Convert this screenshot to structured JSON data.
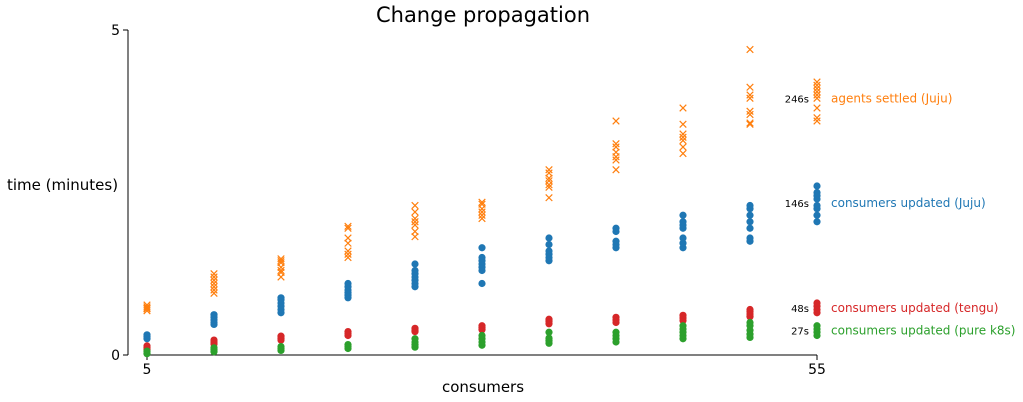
{
  "chart_data": {
    "type": "scatter",
    "title": "Change propagation",
    "xlabel": "consumers",
    "ylabel": "time (minutes)",
    "xlim": [
      5,
      55
    ],
    "ylim": [
      0,
      5
    ],
    "x_ticks": [
      "5",
      "55"
    ],
    "y_ticks": [
      "0",
      "5"
    ],
    "grid": false,
    "series": [
      {
        "name": "agents settled (Juju)",
        "color": "#ff7f0e",
        "marker": "x",
        "end_label": "246s",
        "points": [
          [
            5,
            0.68
          ],
          [
            5,
            0.71
          ],
          [
            5,
            0.74
          ],
          [
            5,
            0.77
          ],
          [
            5,
            0.72
          ],
          [
            10,
            1.0
          ],
          [
            10,
            1.05
          ],
          [
            10,
            1.1
          ],
          [
            10,
            1.15
          ],
          [
            10,
            1.2
          ],
          [
            10,
            1.25
          ],
          [
            10,
            0.95
          ],
          [
            15,
            1.2
          ],
          [
            15,
            1.27
          ],
          [
            15,
            1.35
          ],
          [
            15,
            1.42
          ],
          [
            15,
            1.48
          ],
          [
            15,
            1.3
          ],
          [
            15,
            1.45
          ],
          [
            20,
            1.5
          ],
          [
            20,
            1.55
          ],
          [
            20,
            1.72
          ],
          [
            20,
            1.8
          ],
          [
            20,
            1.95
          ],
          [
            20,
            1.98
          ],
          [
            20,
            1.6
          ],
          [
            25,
            1.82
          ],
          [
            25,
            1.9
          ],
          [
            25,
            2.0
          ],
          [
            25,
            2.1
          ],
          [
            25,
            2.2
          ],
          [
            25,
            2.3
          ],
          [
            25,
            2.05
          ],
          [
            30,
            2.1
          ],
          [
            30,
            2.15
          ],
          [
            30,
            2.2
          ],
          [
            30,
            2.25
          ],
          [
            30,
            2.32
          ],
          [
            30,
            2.35
          ],
          [
            35,
            2.42
          ],
          [
            35,
            2.58
          ],
          [
            35,
            2.62
          ],
          [
            35,
            2.68
          ],
          [
            35,
            2.72
          ],
          [
            35,
            2.8
          ],
          [
            35,
            2.85
          ],
          [
            40,
            2.85
          ],
          [
            40,
            3.0
          ],
          [
            40,
            3.05
          ],
          [
            40,
            3.12
          ],
          [
            40,
            3.2
          ],
          [
            40,
            3.25
          ],
          [
            40,
            3.6
          ],
          [
            45,
            3.1
          ],
          [
            45,
            3.2
          ],
          [
            45,
            3.3
          ],
          [
            45,
            3.35
          ],
          [
            45,
            3.4
          ],
          [
            45,
            3.55
          ],
          [
            45,
            3.8
          ],
          [
            50,
            3.55
          ],
          [
            50,
            3.57
          ],
          [
            50,
            3.7
          ],
          [
            50,
            3.75
          ],
          [
            50,
            3.95
          ],
          [
            50,
            4.0
          ],
          [
            50,
            4.12
          ],
          [
            50,
            4.7
          ],
          [
            55,
            3.6
          ],
          [
            55,
            3.65
          ],
          [
            55,
            3.8
          ],
          [
            55,
            3.95
          ],
          [
            55,
            4.0
          ],
          [
            55,
            4.05
          ],
          [
            55,
            4.1
          ],
          [
            55,
            4.15
          ],
          [
            55,
            4.2
          ]
        ]
      },
      {
        "name": "consumers updated (Juju)",
        "color": "#1f77b4",
        "marker": "o",
        "end_label": "146s",
        "points": [
          [
            5,
            0.25
          ],
          [
            5,
            0.28
          ],
          [
            5,
            0.31
          ],
          [
            10,
            0.47
          ],
          [
            10,
            0.5
          ],
          [
            10,
            0.54
          ],
          [
            10,
            0.58
          ],
          [
            10,
            0.62
          ],
          [
            15,
            0.65
          ],
          [
            15,
            0.7
          ],
          [
            15,
            0.75
          ],
          [
            15,
            0.8
          ],
          [
            15,
            0.85
          ],
          [
            15,
            0.88
          ],
          [
            20,
            0.88
          ],
          [
            20,
            0.92
          ],
          [
            20,
            0.96
          ],
          [
            20,
            1.0
          ],
          [
            20,
            1.05
          ],
          [
            20,
            1.1
          ],
          [
            25,
            1.05
          ],
          [
            25,
            1.1
          ],
          [
            25,
            1.15
          ],
          [
            25,
            1.2
          ],
          [
            25,
            1.25
          ],
          [
            25,
            1.3
          ],
          [
            25,
            1.4
          ],
          [
            30,
            1.1
          ],
          [
            30,
            1.3
          ],
          [
            30,
            1.35
          ],
          [
            30,
            1.4
          ],
          [
            30,
            1.45
          ],
          [
            30,
            1.5
          ],
          [
            30,
            1.65
          ],
          [
            35,
            1.45
          ],
          [
            35,
            1.5
          ],
          [
            35,
            1.55
          ],
          [
            35,
            1.6
          ],
          [
            35,
            1.7
          ],
          [
            35,
            1.8
          ],
          [
            40,
            1.65
          ],
          [
            40,
            1.7
          ],
          [
            40,
            1.75
          ],
          [
            40,
            1.9
          ],
          [
            40,
            1.95
          ],
          [
            45,
            1.65
          ],
          [
            45,
            1.72
          ],
          [
            45,
            1.8
          ],
          [
            45,
            1.95
          ],
          [
            45,
            2.0
          ],
          [
            45,
            2.05
          ],
          [
            45,
            2.15
          ],
          [
            50,
            1.75
          ],
          [
            50,
            1.8
          ],
          [
            50,
            1.95
          ],
          [
            50,
            2.05
          ],
          [
            50,
            2.15
          ],
          [
            50,
            2.25
          ],
          [
            50,
            2.3
          ],
          [
            55,
            2.05
          ],
          [
            55,
            2.15
          ],
          [
            55,
            2.25
          ],
          [
            55,
            2.3
          ],
          [
            55,
            2.4
          ],
          [
            55,
            2.45
          ],
          [
            55,
            2.5
          ],
          [
            55,
            2.6
          ]
        ]
      },
      {
        "name": "consumers updated (tengu)",
        "color": "#d62728",
        "marker": "o",
        "end_label": "48s",
        "points": [
          [
            5,
            0.08
          ],
          [
            5,
            0.11
          ],
          [
            5,
            0.14
          ],
          [
            10,
            0.17
          ],
          [
            10,
            0.2
          ],
          [
            10,
            0.23
          ],
          [
            15,
            0.23
          ],
          [
            15,
            0.26
          ],
          [
            15,
            0.29
          ],
          [
            20,
            0.3
          ],
          [
            20,
            0.33
          ],
          [
            20,
            0.36
          ],
          [
            25,
            0.36
          ],
          [
            25,
            0.38
          ],
          [
            25,
            0.41
          ],
          [
            30,
            0.39
          ],
          [
            30,
            0.42
          ],
          [
            30,
            0.45
          ],
          [
            35,
            0.48
          ],
          [
            35,
            0.52
          ],
          [
            35,
            0.55
          ],
          [
            40,
            0.5
          ],
          [
            40,
            0.54
          ],
          [
            40,
            0.58
          ],
          [
            45,
            0.53
          ],
          [
            45,
            0.57
          ],
          [
            45,
            0.61
          ],
          [
            50,
            0.59
          ],
          [
            50,
            0.63
          ],
          [
            50,
            0.67
          ],
          [
            50,
            0.7
          ],
          [
            55,
            0.65
          ],
          [
            55,
            0.7
          ],
          [
            55,
            0.75
          ],
          [
            55,
            0.8
          ]
        ]
      },
      {
        "name": "consumers updated (pure k8s)",
        "color": "#2ca02c",
        "marker": "o",
        "end_label": "27s",
        "points": [
          [
            5,
            0.02
          ],
          [
            5,
            0.06
          ],
          [
            10,
            0.05
          ],
          [
            10,
            0.08
          ],
          [
            10,
            0.11
          ],
          [
            15,
            0.07
          ],
          [
            15,
            0.1
          ],
          [
            15,
            0.13
          ],
          [
            20,
            0.1
          ],
          [
            20,
            0.13
          ],
          [
            20,
            0.16
          ],
          [
            25,
            0.12
          ],
          [
            25,
            0.16
          ],
          [
            25,
            0.2
          ],
          [
            25,
            0.25
          ],
          [
            30,
            0.15
          ],
          [
            30,
            0.2
          ],
          [
            30,
            0.25
          ],
          [
            30,
            0.3
          ],
          [
            35,
            0.18
          ],
          [
            35,
            0.22
          ],
          [
            35,
            0.26
          ],
          [
            35,
            0.35
          ],
          [
            40,
            0.2
          ],
          [
            40,
            0.25
          ],
          [
            40,
            0.3
          ],
          [
            40,
            0.35
          ],
          [
            45,
            0.25
          ],
          [
            45,
            0.3
          ],
          [
            45,
            0.35
          ],
          [
            45,
            0.4
          ],
          [
            45,
            0.45
          ],
          [
            50,
            0.27
          ],
          [
            50,
            0.32
          ],
          [
            50,
            0.38
          ],
          [
            50,
            0.45
          ],
          [
            50,
            0.5
          ],
          [
            55,
            0.3
          ],
          [
            55,
            0.35
          ],
          [
            55,
            0.4
          ],
          [
            55,
            0.45
          ]
        ]
      }
    ]
  }
}
